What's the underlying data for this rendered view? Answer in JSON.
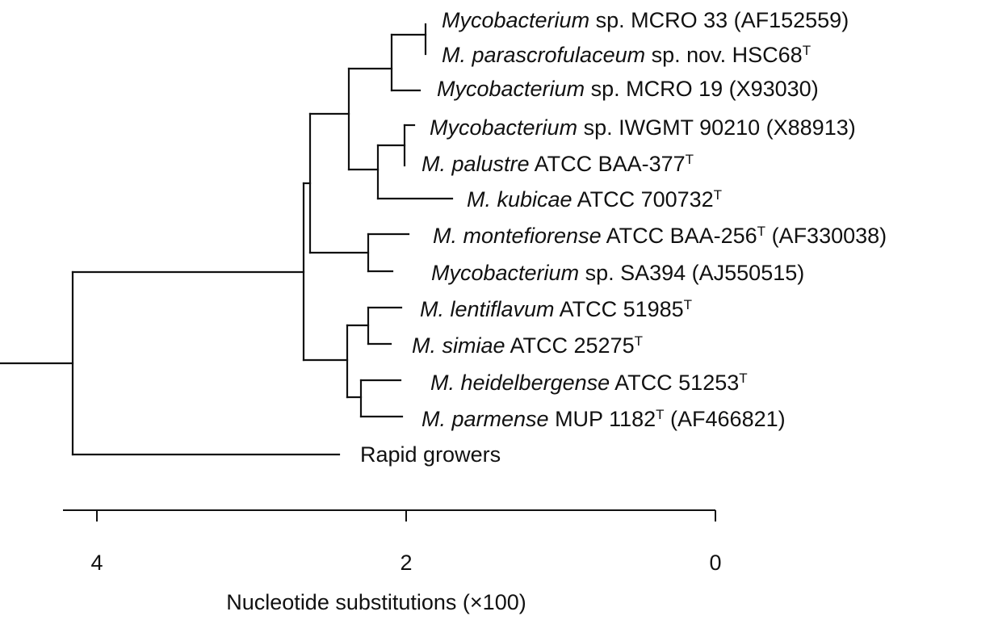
{
  "leaves": [
    {
      "id": "mcro33",
      "parts": [
        {
          "t": "Mycobacterium",
          "i": true
        },
        {
          "t": " sp. MCRO 33 (AF152559)"
        }
      ]
    },
    {
      "id": "hsc68",
      "parts": [
        {
          "t": "M. parascrofulaceum",
          "i": true
        },
        {
          "t": " sp. nov. HSC68"
        },
        {
          "t": "T",
          "sup": true
        }
      ]
    },
    {
      "id": "mcro19",
      "parts": [
        {
          "t": "Mycobacterium",
          "i": true
        },
        {
          "t": " sp. MCRO 19 (X93030)"
        }
      ]
    },
    {
      "id": "iwgmt",
      "parts": [
        {
          "t": "Mycobacterium",
          "i": true
        },
        {
          "t": " sp. IWGMT 90210 (X88913)"
        }
      ]
    },
    {
      "id": "palustre",
      "parts": [
        {
          "t": "M. palustre",
          "i": true
        },
        {
          "t": " ATCC BAA-377"
        },
        {
          "t": "T",
          "sup": true
        }
      ]
    },
    {
      "id": "kubicae",
      "parts": [
        {
          "t": "M. kubicae",
          "i": true
        },
        {
          "t": " ATCC 700732"
        },
        {
          "t": "T",
          "sup": true
        }
      ]
    },
    {
      "id": "montefiorense",
      "parts": [
        {
          "t": "M. montefiorense",
          "i": true
        },
        {
          "t": " ATCC BAA-256"
        },
        {
          "t": "T",
          "sup": true
        },
        {
          "t": " (AF330038)"
        }
      ]
    },
    {
      "id": "sa394",
      "parts": [
        {
          "t": "Mycobacterium",
          "i": true
        },
        {
          "t": " sp. SA394 (AJ550515)"
        }
      ]
    },
    {
      "id": "lentiflavum",
      "parts": [
        {
          "t": "M. lentiflavum",
          "i": true
        },
        {
          "t": " ATCC 51985"
        },
        {
          "t": "T",
          "sup": true
        }
      ]
    },
    {
      "id": "simiae",
      "parts": [
        {
          "t": "M. simiae",
          "i": true
        },
        {
          "t": " ATCC 25275"
        },
        {
          "t": "T",
          "sup": true
        }
      ]
    },
    {
      "id": "heidelbergense",
      "parts": [
        {
          "t": "M. heidelbergense",
          "i": true
        },
        {
          "t": " ATCC 51253"
        },
        {
          "t": "T",
          "sup": true
        }
      ]
    },
    {
      "id": "parmense",
      "parts": [
        {
          "t": "M. parmense",
          "i": true
        },
        {
          "t": " MUP 1182"
        },
        {
          "t": "T",
          "sup": true
        },
        {
          "t": " (AF466821)"
        }
      ]
    },
    {
      "id": "rapid",
      "parts": [
        {
          "t": "Rapid growers"
        }
      ]
    }
  ],
  "scale": {
    "ticks": [
      4,
      2,
      0
    ],
    "title": "Nucleotide substitutions (×100)"
  }
}
